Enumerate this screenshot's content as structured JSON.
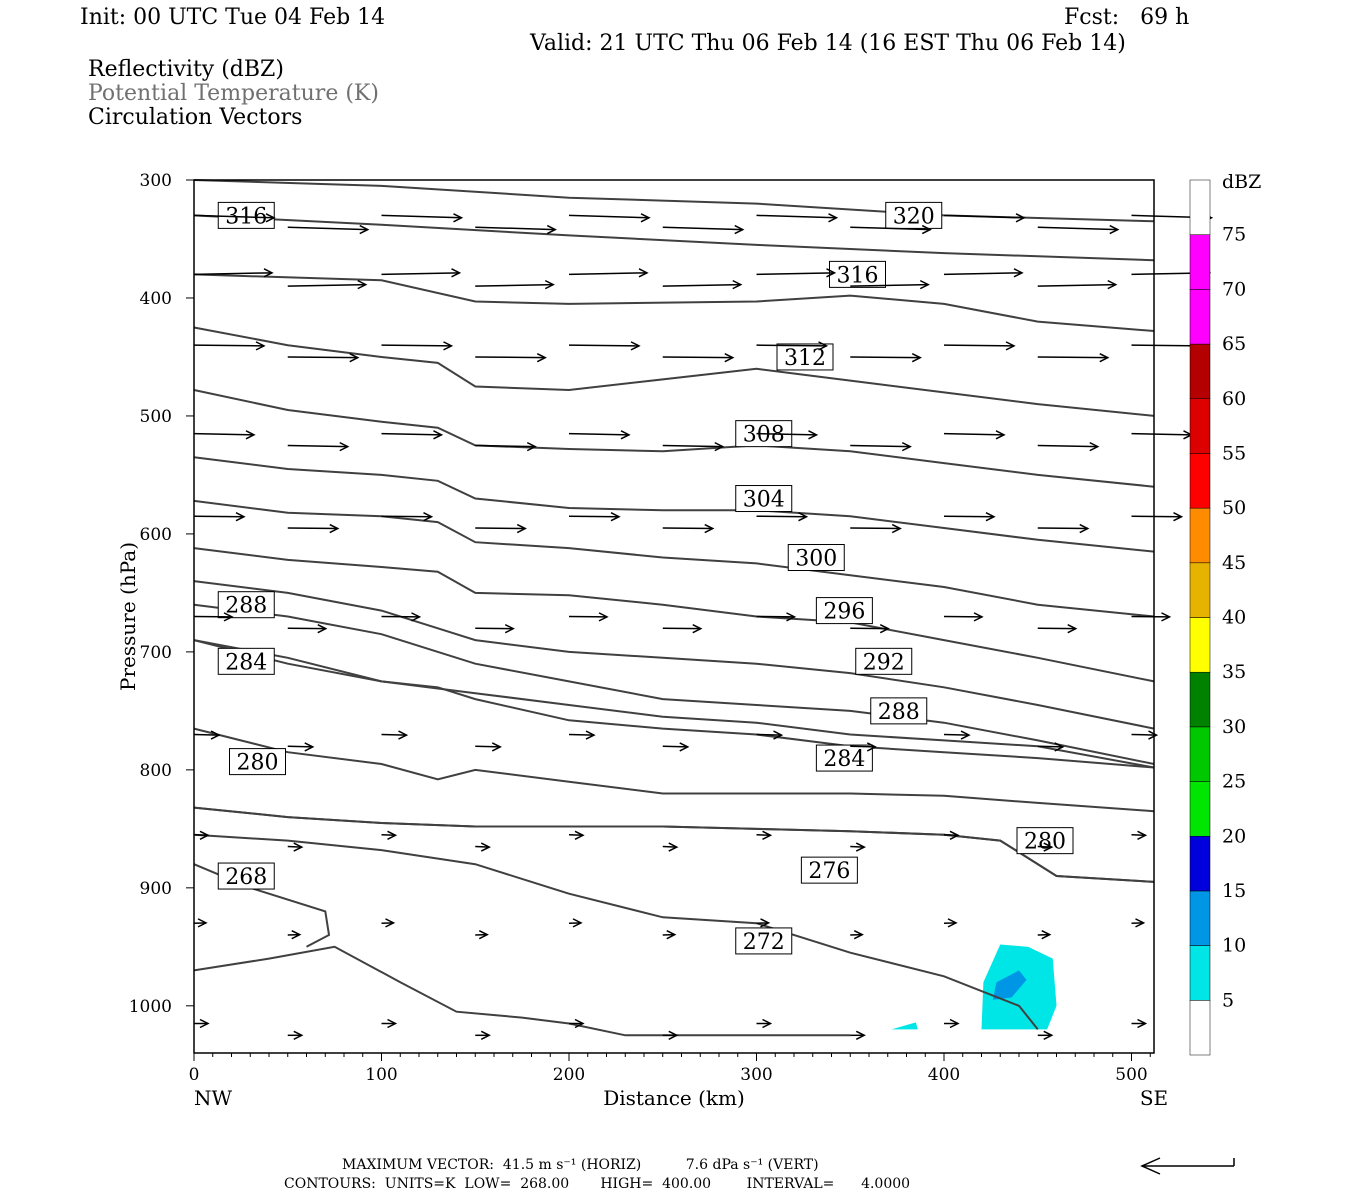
{
  "header": {
    "init": "Init: 00 UTC Tue 04 Feb 14",
    "fcst": "Fcst:   69 h",
    "valid": "Valid: 21 UTC Thu 06 Feb 14 (16 EST Thu 06 Feb 14)",
    "fields": [
      "Reflectivity (dBZ)",
      "Potential Temperature (K)",
      "Circulation Vectors"
    ]
  },
  "chart_data": {
    "type": "cross-section",
    "xlabel": "Distance (km)",
    "ylabel": "Pressure (hPa)",
    "xlim": [
      0,
      512
    ],
    "ylim": [
      1040,
      300
    ],
    "x_ticks": [
      0,
      100,
      200,
      300,
      400,
      500
    ],
    "y_ticks": [
      300,
      400,
      500,
      600,
      700,
      800,
      900,
      1000
    ],
    "x_end_labels": {
      "left": "NW",
      "right": "SE"
    },
    "colorbar": {
      "unit": "dBZ",
      "levels": [
        5,
        10,
        15,
        20,
        25,
        30,
        35,
        40,
        45,
        50,
        55,
        60,
        65,
        70,
        75
      ],
      "colors": [
        "#00e6e6",
        "#0096e6",
        "#0000dc",
        "#00e600",
        "#00c800",
        "#008200",
        "#ffff00",
        "#e6b400",
        "#ff8c00",
        "#ff0000",
        "#dc0000",
        "#b40000",
        "#ff00ff",
        "#ff00ff",
        "#9650c8"
      ]
    },
    "theta_contours": [
      {
        "label": "320",
        "label_at": [
          370,
          330
        ],
        "points": [
          [
            0,
            300
          ],
          [
            100,
            305
          ],
          [
            200,
            315
          ],
          [
            300,
            320
          ],
          [
            400,
            330
          ],
          [
            512,
            335
          ]
        ]
      },
      {
        "label": "316",
        "label_at": [
          14,
          330
        ],
        "points": [
          [
            0,
            330
          ],
          [
            100,
            338
          ],
          [
            200,
            347
          ],
          [
            300,
            355
          ],
          [
            400,
            362
          ],
          [
            512,
            368
          ]
        ]
      },
      {
        "label": "316",
        "label_at": [
          340,
          380
        ],
        "points": [
          [
            0,
            380
          ],
          [
            100,
            385
          ],
          [
            150,
            403
          ],
          [
            200,
            405
          ],
          [
            300,
            403
          ],
          [
            350,
            398
          ],
          [
            400,
            405
          ],
          [
            450,
            420
          ],
          [
            512,
            428
          ]
        ]
      },
      {
        "label": "312",
        "label_at": [
          312,
          450
        ],
        "points": [
          [
            0,
            425
          ],
          [
            50,
            440
          ],
          [
            100,
            450
          ],
          [
            130,
            455
          ],
          [
            150,
            475
          ],
          [
            200,
            478
          ],
          [
            300,
            460
          ],
          [
            350,
            470
          ],
          [
            400,
            480
          ],
          [
            450,
            490
          ],
          [
            512,
            500
          ]
        ]
      },
      {
        "label": "308",
        "label_at": [
          290,
          515
        ],
        "points": [
          [
            0,
            478
          ],
          [
            50,
            495
          ],
          [
            100,
            505
          ],
          [
            130,
            510
          ],
          [
            150,
            525
          ],
          [
            200,
            528
          ],
          [
            250,
            530
          ],
          [
            300,
            525
          ],
          [
            350,
            530
          ],
          [
            400,
            540
          ],
          [
            450,
            550
          ],
          [
            512,
            560
          ]
        ]
      },
      {
        "label": "304",
        "label_at": [
          290,
          570
        ],
        "points": [
          [
            0,
            535
          ],
          [
            50,
            545
          ],
          [
            100,
            550
          ],
          [
            130,
            555
          ],
          [
            150,
            570
          ],
          [
            200,
            578
          ],
          [
            250,
            580
          ],
          [
            300,
            580
          ],
          [
            350,
            585
          ],
          [
            400,
            595
          ],
          [
            450,
            605
          ],
          [
            512,
            615
          ]
        ]
      },
      {
        "label": "300",
        "label_at": [
          318,
          620
        ],
        "points": [
          [
            0,
            572
          ],
          [
            50,
            582
          ],
          [
            100,
            585
          ],
          [
            130,
            590
          ],
          [
            150,
            607
          ],
          [
            200,
            612
          ],
          [
            250,
            620
          ],
          [
            300,
            625
          ],
          [
            350,
            635
          ],
          [
            400,
            645
          ],
          [
            450,
            660
          ],
          [
            512,
            670
          ]
        ]
      },
      {
        "label": "296",
        "label_at": [
          333,
          665
        ],
        "points": [
          [
            0,
            612
          ],
          [
            50,
            622
          ],
          [
            100,
            628
          ],
          [
            130,
            632
          ],
          [
            150,
            650
          ],
          [
            200,
            652
          ],
          [
            250,
            660
          ],
          [
            300,
            670
          ],
          [
            350,
            675
          ],
          [
            400,
            690
          ],
          [
            450,
            705
          ],
          [
            512,
            725
          ]
        ]
      },
      {
        "label": "292",
        "label_at": [
          354,
          708
        ],
        "points": [
          [
            0,
            640
          ],
          [
            50,
            650
          ],
          [
            100,
            665
          ],
          [
            150,
            690
          ],
          [
            200,
            700
          ],
          [
            250,
            705
          ],
          [
            300,
            710
          ],
          [
            350,
            718
          ],
          [
            400,
            730
          ],
          [
            450,
            745
          ],
          [
            512,
            765
          ]
        ]
      },
      {
        "label": "288",
        "label_at": [
          14,
          660
        ],
        "points": [
          [
            0,
            660
          ],
          [
            50,
            670
          ],
          [
            100,
            685
          ],
          [
            150,
            710
          ],
          [
            200,
            725
          ],
          [
            250,
            740
          ],
          [
            300,
            745
          ],
          [
            350,
            750
          ],
          [
            400,
            760
          ],
          [
            450,
            775
          ],
          [
            512,
            795
          ]
        ]
      },
      {
        "label": "288",
        "label_at": [
          362,
          750
        ],
        "points": [
          [
            0,
            690
          ],
          [
            50,
            705
          ],
          [
            100,
            725
          ],
          [
            150,
            735
          ],
          [
            200,
            745
          ],
          [
            250,
            755
          ],
          [
            300,
            760
          ],
          [
            350,
            770
          ],
          [
            400,
            775
          ],
          [
            450,
            780
          ],
          [
            512,
            798
          ]
        ]
      },
      {
        "label": "284",
        "label_at": [
          14,
          708
        ],
        "points": [
          [
            0,
            690
          ],
          [
            50,
            710
          ],
          [
            100,
            725
          ],
          [
            130,
            730
          ],
          [
            150,
            740
          ],
          [
            200,
            758
          ],
          [
            250,
            765
          ],
          [
            300,
            770
          ],
          [
            350,
            780
          ],
          [
            400,
            785
          ],
          [
            450,
            790
          ],
          [
            512,
            798
          ]
        ]
      },
      {
        "label": "284",
        "label_at": [
          333,
          790
        ],
        "points": [
          [
            0,
            765
          ],
          [
            50,
            785
          ],
          [
            100,
            795
          ],
          [
            130,
            808
          ],
          [
            150,
            800
          ],
          [
            200,
            810
          ],
          [
            250,
            820
          ],
          [
            300,
            820
          ],
          [
            350,
            820
          ],
          [
            400,
            822
          ],
          [
            450,
            828
          ],
          [
            512,
            835
          ]
        ]
      },
      {
        "label": "280",
        "label_at": [
          20,
          793
        ],
        "points": [
          [
            0,
            832
          ],
          [
            50,
            840
          ],
          [
            100,
            845
          ],
          [
            150,
            848
          ],
          [
            200,
            848
          ],
          [
            250,
            848
          ],
          [
            300,
            850
          ],
          [
            350,
            852
          ],
          [
            400,
            855
          ],
          [
            430,
            860
          ],
          [
            460,
            890
          ],
          [
            512,
            895
          ]
        ]
      },
      {
        "label": "280",
        "label_at": [
          440,
          860
        ],
        "points": [
          [
            0,
            832
          ],
          [
            50,
            840
          ],
          [
            100,
            845
          ],
          [
            150,
            848
          ],
          [
            200,
            848
          ],
          [
            250,
            848
          ],
          [
            300,
            850
          ],
          [
            350,
            852
          ],
          [
            400,
            855
          ],
          [
            430,
            860
          ],
          [
            460,
            890
          ],
          [
            512,
            895
          ]
        ]
      },
      {
        "label": "276",
        "label_at": [
          325,
          885
        ],
        "points": [
          [
            0,
            855
          ],
          [
            50,
            860
          ],
          [
            100,
            868
          ],
          [
            150,
            880
          ],
          [
            200,
            905
          ],
          [
            250,
            925
          ],
          [
            300,
            930
          ],
          [
            350,
            955
          ],
          [
            400,
            975
          ],
          [
            440,
            1000
          ],
          [
            450,
            1020
          ]
        ]
      },
      {
        "label": "272",
        "label_at": [
          290,
          945
        ],
        "points": [
          [
            0,
            970
          ],
          [
            40,
            960
          ],
          [
            75,
            950
          ],
          [
            110,
            980
          ],
          [
            140,
            1005
          ],
          [
            175,
            1010
          ],
          [
            200,
            1015
          ],
          [
            230,
            1025
          ],
          [
            300,
            1025
          ],
          [
            350,
            1025
          ]
        ]
      },
      {
        "label": "268",
        "label_at": [
          14,
          890
        ],
        "points": [
          [
            0,
            880
          ],
          [
            30,
            900
          ],
          [
            70,
            920
          ],
          [
            72,
            940
          ],
          [
            60,
            950
          ]
        ]
      }
    ],
    "vectors_note": "Circulation vectors; max 41.5 m s-1 horiz, 7.6 dPa s-1 vert",
    "max_vector": {
      "horiz": "41.5",
      "vert": "7.6"
    }
  },
  "footer": {
    "line1": "MAXIMUM VECTOR:  41.5 m s⁻¹ (HORIZ)          7.6 dPa s⁻¹ (VERT)",
    "line2": "CONTOURS:  UNITS=K  LOW=  268.00       HIGH=  400.00        INTERVAL=      4.0000"
  }
}
